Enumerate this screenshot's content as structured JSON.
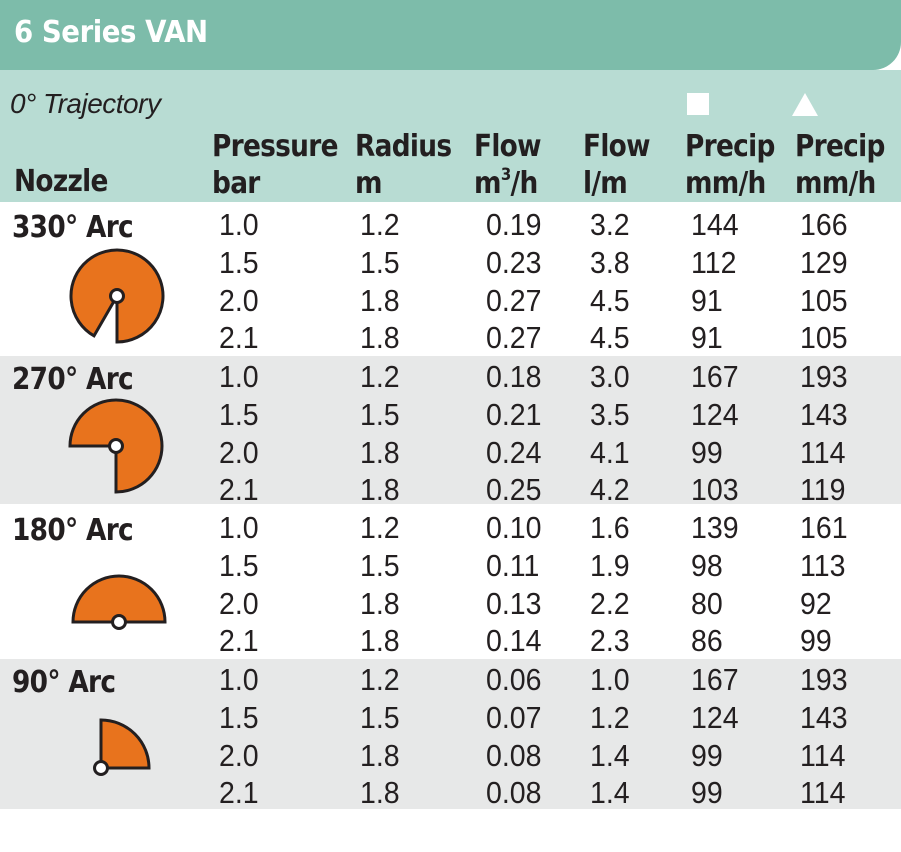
{
  "title": "6 Series VAN",
  "trajectory": "0° Trajectory",
  "headers": {
    "nozzle": "Nozzle",
    "pressure_line1": "Pressure",
    "pressure_line2": "bar",
    "radius_line1": "Radius",
    "radius_line2": "m",
    "flow_m3_line1": "Flow",
    "flow_m3_line2": "m",
    "flow_m3_sup": "3",
    "flow_m3_tail": "/h",
    "flow_lm_line1": "Flow",
    "flow_lm_line2": "l/m",
    "precip_square_line1": "Precip",
    "precip_square_line2": "mm/h",
    "precip_triangle_line1": "Precip",
    "precip_triangle_line2": "mm/h"
  },
  "symbols": {
    "square": "square-icon",
    "triangle": "triangle-icon"
  },
  "colors": {
    "title_bar": "#7dbcaa",
    "header_band": "#b8dcd3",
    "shaded_row": "#e7e8e8",
    "arc_fill": "#e8731d",
    "text": "#231f20"
  },
  "groups": [
    {
      "arc": "330° Arc",
      "degrees": 330,
      "rows": [
        [
          "1.0",
          "1.2",
          "0.19",
          "3.2",
          "144",
          "166"
        ],
        [
          "1.5",
          "1.5",
          "0.23",
          "3.8",
          "112",
          "129"
        ],
        [
          "2.0",
          "1.8",
          "0.27",
          "4.5",
          "91",
          "105"
        ],
        [
          "2.1",
          "1.8",
          "0.27",
          "4.5",
          "91",
          "105"
        ]
      ]
    },
    {
      "arc": "270° Arc",
      "degrees": 270,
      "rows": [
        [
          "1.0",
          "1.2",
          "0.18",
          "3.0",
          "167",
          "193"
        ],
        [
          "1.5",
          "1.5",
          "0.21",
          "3.5",
          "124",
          "143"
        ],
        [
          "2.0",
          "1.8",
          "0.24",
          "4.1",
          "99",
          "114"
        ],
        [
          "2.1",
          "1.8",
          "0.25",
          "4.2",
          "103",
          "119"
        ]
      ]
    },
    {
      "arc": "180° Arc",
      "degrees": 180,
      "rows": [
        [
          "1.0",
          "1.2",
          "0.10",
          "1.6",
          "139",
          "161"
        ],
        [
          "1.5",
          "1.5",
          "0.11",
          "1.9",
          "98",
          "113"
        ],
        [
          "2.0",
          "1.8",
          "0.13",
          "2.2",
          "80",
          "92"
        ],
        [
          "2.1",
          "1.8",
          "0.14",
          "2.3",
          "86",
          "99"
        ]
      ]
    },
    {
      "arc": "90° Arc",
      "degrees": 90,
      "rows": [
        [
          "1.0",
          "1.2",
          "0.06",
          "1.0",
          "167",
          "193"
        ],
        [
          "1.5",
          "1.5",
          "0.07",
          "1.2",
          "124",
          "143"
        ],
        [
          "2.0",
          "1.8",
          "0.08",
          "1.4",
          "99",
          "114"
        ],
        [
          "2.1",
          "1.8",
          "0.08",
          "1.4",
          "99",
          "114"
        ]
      ]
    }
  ]
}
